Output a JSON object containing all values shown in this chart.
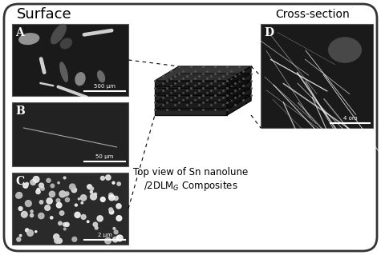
{
  "bg_color": "#ffffff",
  "border_color": "#333333",
  "title_surface": "Surface",
  "title_cross": "Cross-section",
  "label_A": "A",
  "label_B": "B",
  "label_C": "C",
  "label_D": "D",
  "scale_A": "500 μm",
  "scale_B": "50 μm",
  "scale_C": "2 μm",
  "scale_D": "4 οm",
  "caption": "Top view of Sn nanolune\n/2DLM$_G$ Composites",
  "panel_A_color_bg": "#1a1a1a",
  "panel_B_color_bg": "#2a2a2a",
  "panel_C_color_bg": "#3a3a3a",
  "panel_D_color_bg": "#1a1a1a",
  "gray_light": "#aaaaaa",
  "gray_mid": "#666666",
  "gray_dark": "#222222",
  "white": "#ffffff",
  "black": "#000000"
}
